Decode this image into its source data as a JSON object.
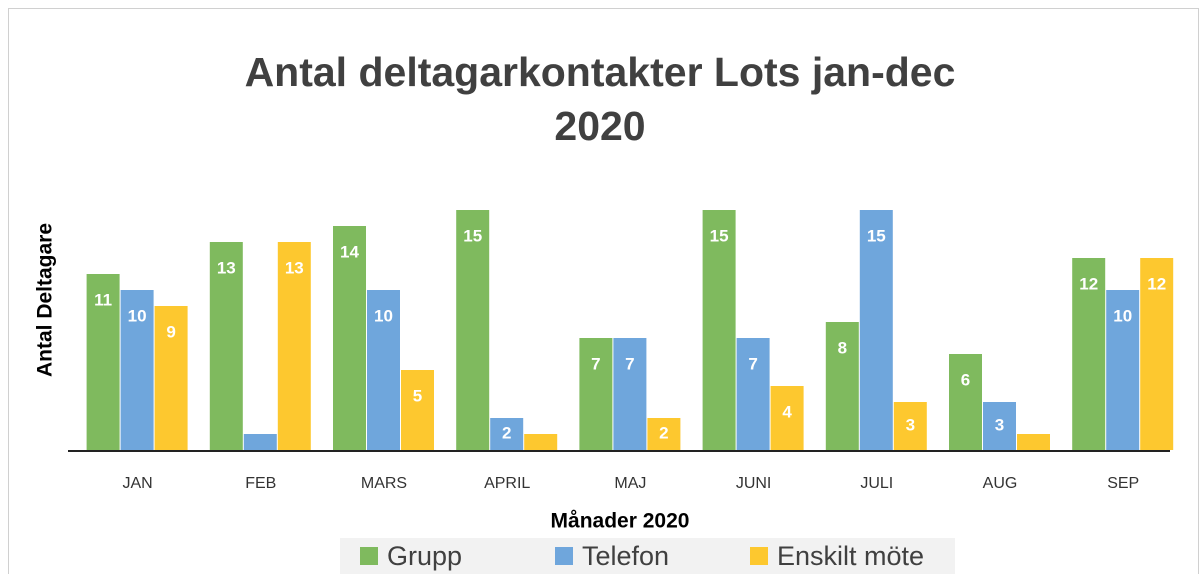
{
  "chart_data": {
    "type": "bar",
    "title": "Antal deltagarkontakter Lots jan-dec 2020",
    "x_label": "Månader 2020",
    "y_label": "Antal Deltagare",
    "categories": [
      "JAN",
      "FEB",
      "MARS",
      "APRIL",
      "MAJ",
      "JUNI",
      "JULI",
      "AUG",
      "SEP"
    ],
    "series": [
      {
        "name": "Grupp",
        "color": "#7fba5e",
        "values": [
          11,
          13,
          14,
          15,
          7,
          15,
          8,
          6,
          12
        ],
        "value_labels": [
          11,
          13,
          14,
          15,
          7,
          15,
          8,
          6,
          12
        ]
      },
      {
        "name": "Telefon",
        "color": "#6fa6dc",
        "values": [
          10,
          1,
          10,
          2,
          7,
          7,
          15,
          3,
          10
        ],
        "value_labels": [
          10,
          null,
          10,
          2,
          7,
          7,
          15,
          3,
          10
        ]
      },
      {
        "name": "Enskilt möte",
        "color": "#fdc82f",
        "values": [
          9,
          13,
          5,
          1,
          2,
          4,
          3,
          1,
          12
        ],
        "value_labels": [
          9,
          13,
          5,
          null,
          2,
          4,
          3,
          null,
          12
        ]
      }
    ],
    "ylim": [
      0,
      16
    ],
    "grid": false
  }
}
